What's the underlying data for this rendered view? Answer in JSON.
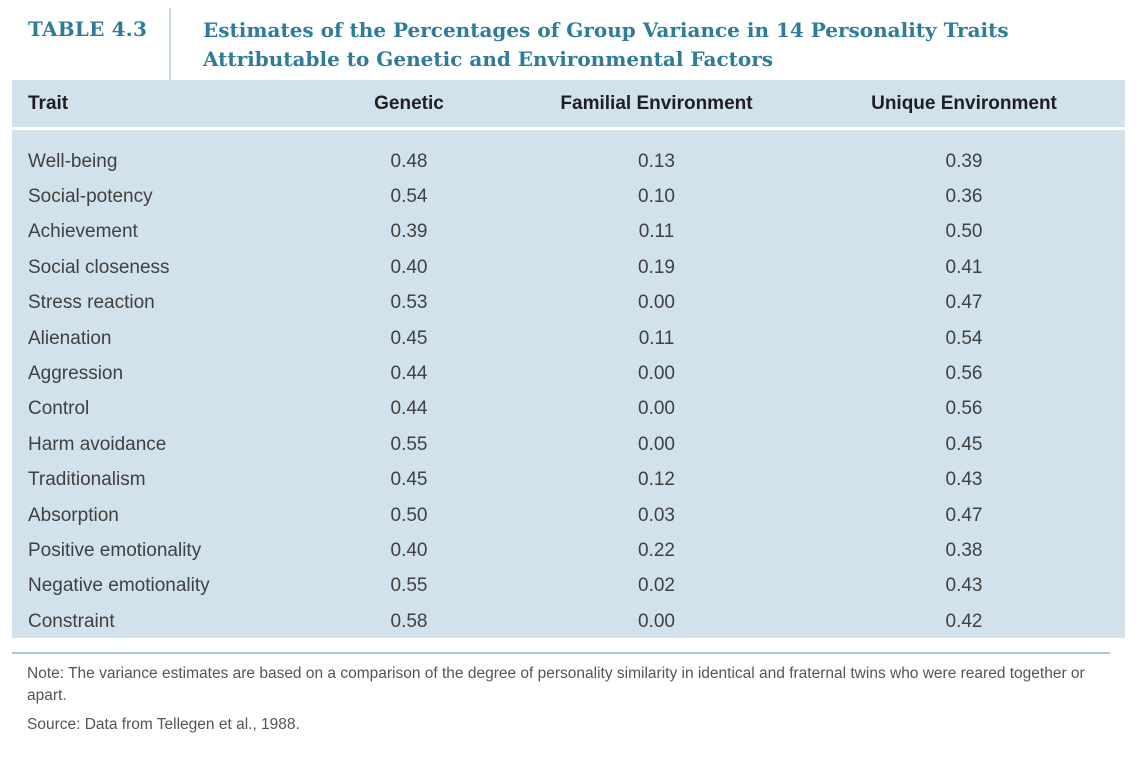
{
  "header": {
    "label": "TABLE 4.3",
    "title": "Estimates of the Percentages of Group Variance in 14 Personality Traits Attributable to Genetic and Environmental Factors"
  },
  "table": {
    "columns": [
      "Trait",
      "Genetic",
      "Familial Environment",
      "Unique Environment"
    ],
    "rows": [
      [
        "Well-being",
        "0.48",
        "0.13",
        "0.39"
      ],
      [
        "Social-potency",
        "0.54",
        "0.10",
        "0.36"
      ],
      [
        "Achievement",
        "0.39",
        "0.11",
        "0.50"
      ],
      [
        "Social closeness",
        "0.40",
        "0.19",
        "0.41"
      ],
      [
        "Stress reaction",
        "0.53",
        "0.00",
        "0.47"
      ],
      [
        "Alienation",
        "0.45",
        "0.11",
        "0.54"
      ],
      [
        "Aggression",
        "0.44",
        "0.00",
        "0.56"
      ],
      [
        "Control",
        "0.44",
        "0.00",
        "0.56"
      ],
      [
        "Harm avoidance",
        "0.55",
        "0.00",
        "0.45"
      ],
      [
        "Traditionalism",
        "0.45",
        "0.12",
        "0.43"
      ],
      [
        "Absorption",
        "0.50",
        "0.03",
        "0.47"
      ],
      [
        "Positive emotionality",
        "0.40",
        "0.22",
        "0.38"
      ],
      [
        "Negative emotionality",
        "0.55",
        "0.02",
        "0.43"
      ],
      [
        "Constraint",
        "0.58",
        "0.00",
        "0.42"
      ]
    ]
  },
  "notes": {
    "note": "Note: The variance estimates are based on a comparison of the degree of personality similarity in identical and fraternal twins who were reared together or apart.",
    "source": "Source: Data from Tellegen et al., 1988."
  },
  "colors": {
    "title": "#2f7b99",
    "table_background": "#d2e2ec",
    "divider": "#c6dce6"
  }
}
